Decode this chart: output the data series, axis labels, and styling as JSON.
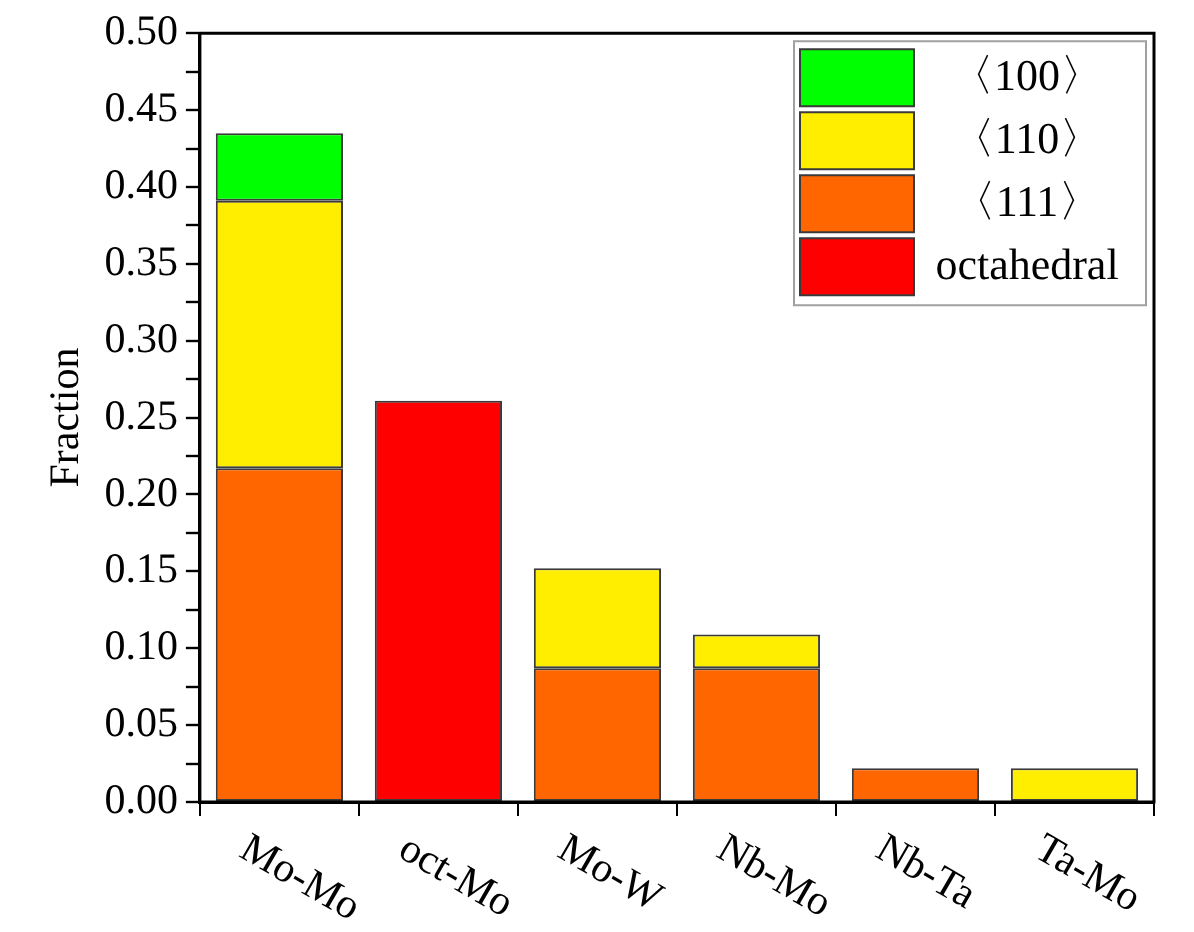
{
  "chart_data": {
    "type": "bar",
    "ylabel": "Fraction",
    "stacked": true,
    "legend": "top right",
    "categories": [
      "Mo-Mo",
      "oct-Mo",
      "Mo-W",
      "Nb-Mo",
      "Nb-Ta",
      "Ta-Mo"
    ],
    "series": [
      {
        "name": "octahedral",
        "color": "#ff0000",
        "values": [
          null,
          0.261,
          null,
          null,
          null,
          null
        ]
      },
      {
        "name": "〈111〉",
        "color": "#ff6600",
        "values": [
          0.217,
          null,
          0.087,
          0.087,
          0.022,
          null
        ]
      },
      {
        "name": "〈110〉",
        "color": "#ffee00",
        "values": [
          0.174,
          null,
          0.065,
          0.022,
          null,
          0.022
        ]
      },
      {
        "name": "〈100〉",
        "color": "#00ff00",
        "values": [
          0.044,
          null,
          null,
          null,
          null,
          null
        ]
      }
    ],
    "ylim": [
      0,
      0.5
    ],
    "yticks": [
      {
        "value": 0,
        "label": "0.00"
      },
      {
        "value": 0.025,
        "label": null
      },
      {
        "value": 0.05,
        "label": "0.05"
      },
      {
        "value": 0.075,
        "label": null
      },
      {
        "value": 0.1,
        "label": "0.10"
      },
      {
        "value": 0.125,
        "label": null
      },
      {
        "value": 0.15,
        "label": "0.15"
      },
      {
        "value": 0.175,
        "label": null
      },
      {
        "value": 0.2,
        "label": "0.20"
      },
      {
        "value": 0.225,
        "label": null
      },
      {
        "value": 0.25,
        "label": "0.25"
      },
      {
        "value": 0.275,
        "label": null
      },
      {
        "value": 0.3,
        "label": "0.30"
      },
      {
        "value": 0.325,
        "label": null
      },
      {
        "value": 0.35,
        "label": "0.35"
      },
      {
        "value": 0.375,
        "label": null
      },
      {
        "value": 0.4,
        "label": "0.40"
      },
      {
        "value": 0.425,
        "label": null
      },
      {
        "value": 0.45,
        "label": "0.45"
      },
      {
        "value": 0.475,
        "label": null
      },
      {
        "value": 0.5,
        "label": "0.50"
      }
    ]
  }
}
